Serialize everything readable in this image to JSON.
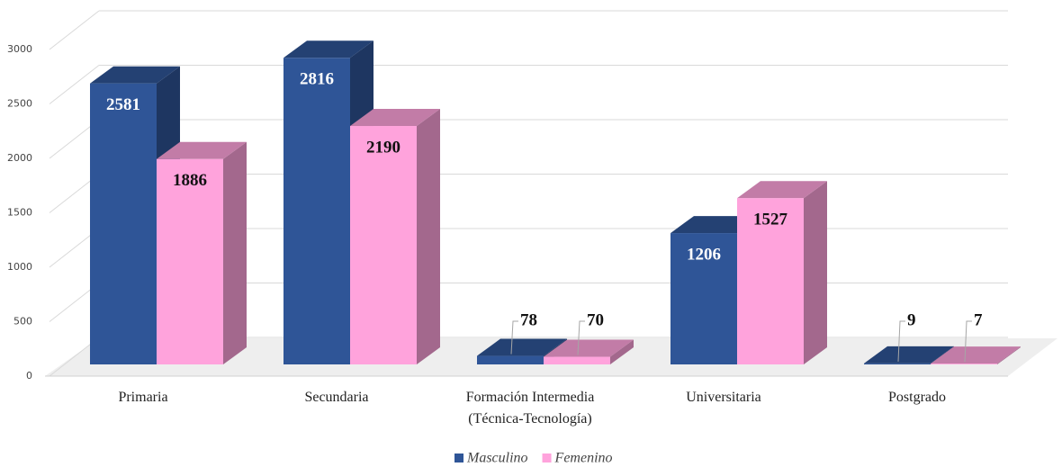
{
  "chart_data": {
    "type": "bar3d",
    "categories": [
      "Primaria",
      "Secundaria",
      "Formación Intermedia\n(Técnica-Tecnología)",
      "Universitaria",
      "Postgrado"
    ],
    "series": [
      {
        "name": "Masculino",
        "color": "#2F5597",
        "values": [
          2581,
          2816,
          78,
          1206,
          9
        ]
      },
      {
        "name": "Femenino",
        "color": "#FFA3DC",
        "values": [
          1886,
          2190,
          70,
          1527,
          7
        ]
      }
    ],
    "ylim": [
      0,
      3000
    ],
    "yticks": [
      0,
      500,
      1000,
      1500,
      2000,
      2500,
      3000
    ],
    "grid": true,
    "legend": "bottom"
  }
}
